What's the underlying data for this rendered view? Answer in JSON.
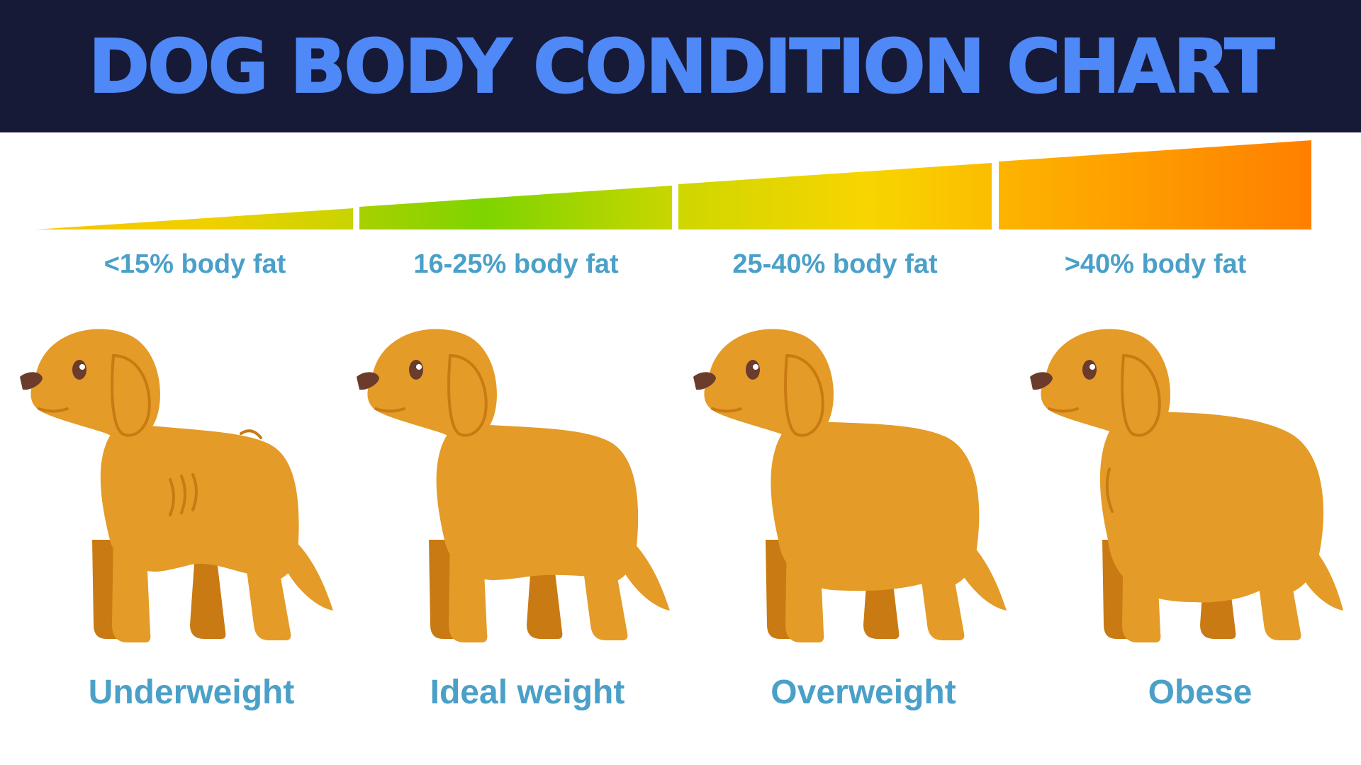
{
  "title": "DOG BODY CONDITION CHART",
  "colors": {
    "header_bg": "#161a37",
    "title": "#4f88f7",
    "label": "#4aa0c8",
    "dog_body": "#e49b27",
    "dog_shade": "#c97a12",
    "nose": "#6b3b2c"
  },
  "stages": [
    {
      "range": "<15% body fat",
      "condition": "Underweight",
      "body_fat_max_pct": 15
    },
    {
      "range": "16-25% body fat",
      "condition": "Ideal weight",
      "body_fat_min_pct": 16,
      "body_fat_max_pct": 25
    },
    {
      "range": "25-40% body fat",
      "condition": "Overweight",
      "body_fat_min_pct": 25,
      "body_fat_max_pct": 40
    },
    {
      "range": ">40% body fat",
      "condition": "Obese",
      "body_fat_min_pct": 40
    }
  ],
  "scale_gradient": [
    "#f5c400",
    "#7ed400",
    "#f8d500",
    "#ff7f00"
  ]
}
